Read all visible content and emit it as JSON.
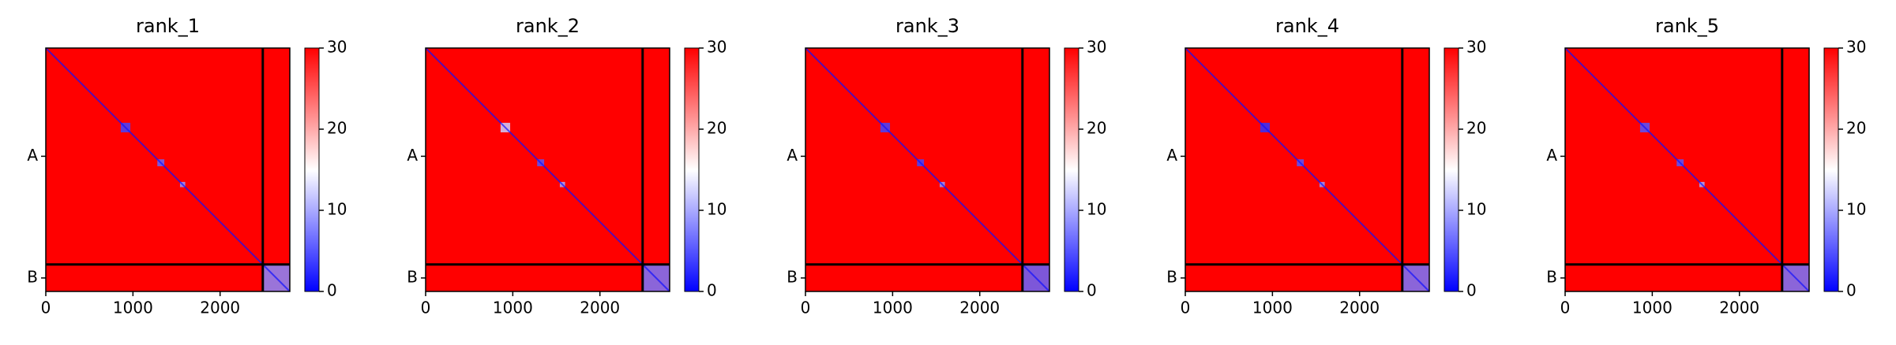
{
  "chart_data": [
    {
      "type": "heatmap",
      "title": "rank_1",
      "xlim": [
        0,
        2800
      ],
      "ylim": [
        2800,
        0
      ],
      "xticks": [
        0,
        1000,
        2000
      ],
      "yticks": [
        {
          "value": 1245,
          "label": "A"
        },
        {
          "value": 2645,
          "label": "B"
        }
      ],
      "boundaries": [
        2490
      ],
      "background": 30,
      "diagonal": 1,
      "blocks": [
        {
          "range": [
            860,
            970
          ],
          "value": 4
        },
        {
          "range": [
            1280,
            1360
          ],
          "value": 6
        },
        {
          "range": [
            1540,
            1600
          ],
          "value": 9
        },
        {
          "range": [
            2490,
            2800
          ],
          "value": 8
        }
      ],
      "clim": [
        0,
        30
      ],
      "cticks": [
        0,
        10,
        20,
        30
      ],
      "colormap": [
        "#0000ff",
        "#ffffff",
        "#ff0000"
      ]
    },
    {
      "type": "heatmap",
      "title": "rank_2",
      "xlim": [
        0,
        2800
      ],
      "ylim": [
        2800,
        0
      ],
      "xticks": [
        0,
        1000,
        2000
      ],
      "yticks": [
        {
          "value": 1245,
          "label": "A"
        },
        {
          "value": 2645,
          "label": "B"
        }
      ],
      "boundaries": [
        2490
      ],
      "background": 30,
      "diagonal": 1,
      "blocks": [
        {
          "range": [
            860,
            970
          ],
          "value": 12
        },
        {
          "range": [
            1280,
            1360
          ],
          "value": 5
        },
        {
          "range": [
            1540,
            1600
          ],
          "value": 10
        },
        {
          "range": [
            2490,
            2800
          ],
          "value": 7
        }
      ],
      "clim": [
        0,
        30
      ],
      "cticks": [
        0,
        10,
        20,
        30
      ],
      "colormap": [
        "#0000ff",
        "#ffffff",
        "#ff0000"
      ]
    },
    {
      "type": "heatmap",
      "title": "rank_3",
      "xlim": [
        0,
        2800
      ],
      "ylim": [
        2800,
        0
      ],
      "xticks": [
        0,
        1000,
        2000
      ],
      "yticks": [
        {
          "value": 1245,
          "label": "A"
        },
        {
          "value": 2645,
          "label": "B"
        }
      ],
      "boundaries": [
        2490
      ],
      "background": 30,
      "diagonal": 1,
      "blocks": [
        {
          "range": [
            860,
            970
          ],
          "value": 4
        },
        {
          "range": [
            1280,
            1360
          ],
          "value": 4
        },
        {
          "range": [
            1540,
            1600
          ],
          "value": 9
        },
        {
          "range": [
            2490,
            2800
          ],
          "value": 6
        }
      ],
      "clim": [
        0,
        30
      ],
      "cticks": [
        0,
        10,
        20,
        30
      ],
      "colormap": [
        "#0000ff",
        "#ffffff",
        "#ff0000"
      ]
    },
    {
      "type": "heatmap",
      "title": "rank_4",
      "xlim": [
        0,
        2800
      ],
      "ylim": [
        2800,
        0
      ],
      "xticks": [
        0,
        1000,
        2000
      ],
      "yticks": [
        {
          "value": 1245,
          "label": "A"
        },
        {
          "value": 2645,
          "label": "B"
        }
      ],
      "boundaries": [
        2490
      ],
      "background": 30,
      "diagonal": 1,
      "blocks": [
        {
          "range": [
            860,
            970
          ],
          "value": 3
        },
        {
          "range": [
            1280,
            1360
          ],
          "value": 5
        },
        {
          "range": [
            1540,
            1600
          ],
          "value": 9
        },
        {
          "range": [
            2490,
            2800
          ],
          "value": 7
        }
      ],
      "clim": [
        0,
        30
      ],
      "cticks": [
        0,
        10,
        20,
        30
      ],
      "colormap": [
        "#0000ff",
        "#ffffff",
        "#ff0000"
      ]
    },
    {
      "type": "heatmap",
      "title": "rank_5",
      "xlim": [
        0,
        2800
      ],
      "ylim": [
        2800,
        0
      ],
      "xticks": [
        0,
        1000,
        2000
      ],
      "yticks": [
        {
          "value": 1245,
          "label": "A"
        },
        {
          "value": 2645,
          "label": "B"
        }
      ],
      "boundaries": [
        2490
      ],
      "background": 30,
      "diagonal": 1,
      "blocks": [
        {
          "range": [
            860,
            970
          ],
          "value": 5
        },
        {
          "range": [
            1280,
            1360
          ],
          "value": 5
        },
        {
          "range": [
            1540,
            1600
          ],
          "value": 10
        },
        {
          "range": [
            2490,
            2800
          ],
          "value": 7
        }
      ],
      "clim": [
        0,
        30
      ],
      "cticks": [
        0,
        10,
        20,
        30
      ],
      "colormap": [
        "#0000ff",
        "#ffffff",
        "#ff0000"
      ]
    }
  ]
}
